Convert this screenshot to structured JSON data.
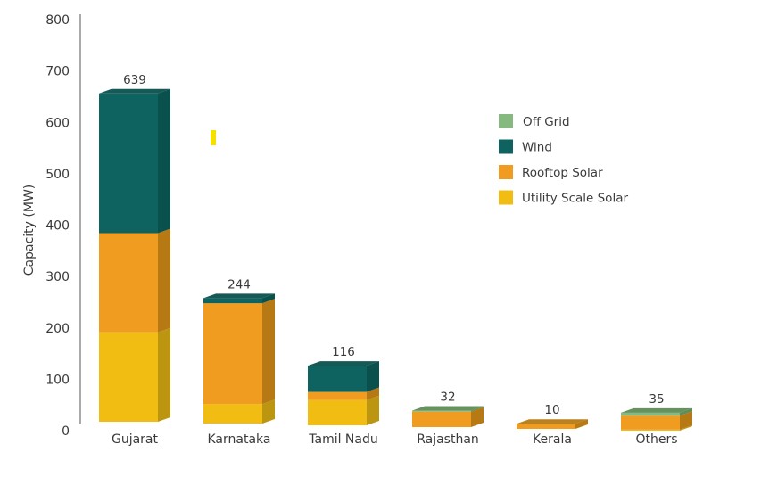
{
  "chart_data": {
    "type": "bar",
    "stacked": true,
    "title": "",
    "xlabel": "",
    "ylabel": "Capacity (MW)",
    "ylim": [
      0,
      800
    ],
    "yticks": [
      "0",
      "100",
      "200",
      "300",
      "400",
      "500",
      "600",
      "700",
      "800"
    ],
    "grid": false,
    "legend_position": "top-right",
    "categories": [
      "Gujarat",
      "Karnataka",
      "Tamil Nadu",
      "Rajasthan",
      "Kerala",
      "Others"
    ],
    "totals": [
      "639",
      "244",
      "116",
      "32",
      "10",
      "35"
    ],
    "series": [
      {
        "name": "Utility Scale Solar",
        "color": "#f2bd13",
        "side": "#bd9611",
        "values": [
          174,
          38,
          49,
          0,
          0,
          2
        ]
      },
      {
        "name": "Rooftop Solar",
        "color": "#ef9c20",
        "side": "#b77913",
        "values": [
          193,
          196,
          16,
          30,
          10,
          27
        ]
      },
      {
        "name": "Wind",
        "color": "#0e6360",
        "side": "#0a504d",
        "values": [
          272,
          10,
          51,
          0,
          0,
          0
        ]
      },
      {
        "name": "Off Grid",
        "color": "#86b97f",
        "side": "#5f8c57",
        "values": [
          0,
          0,
          0,
          2,
          0,
          6
        ]
      }
    ],
    "legend_order": [
      "Off Grid",
      "Wind",
      "Rooftop Solar",
      "Utility Scale Solar"
    ]
  }
}
